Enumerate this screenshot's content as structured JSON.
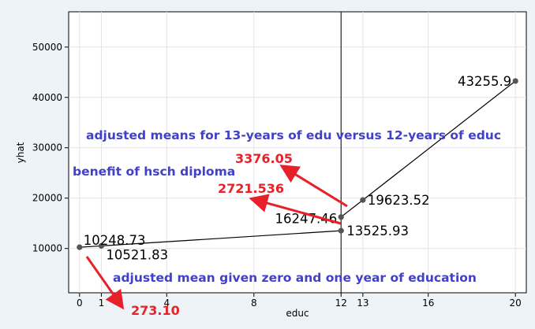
{
  "chart_data": {
    "type": "line",
    "xlabel": "educ",
    "ylabel": "yhat",
    "xlim": [
      -0.5,
      20.5
    ],
    "ylim": [
      1200,
      57000
    ],
    "x_ticks": [
      {
        "value": 0,
        "label": "0"
      },
      {
        "value": 1,
        "label": "1"
      },
      {
        "value": 4,
        "label": "4"
      },
      {
        "value": 8,
        "label": "8"
      },
      {
        "value": 12,
        "label": "12"
      },
      {
        "value": 13,
        "label": "13"
      },
      {
        "value": 16,
        "label": "16"
      },
      {
        "value": 20,
        "label": "20"
      }
    ],
    "y_ticks": [
      {
        "value": 10000,
        "label": "10000"
      },
      {
        "value": 20000,
        "label": "20000"
      },
      {
        "value": 30000,
        "label": "30000"
      },
      {
        "value": 40000,
        "label": "40000"
      },
      {
        "value": 50000,
        "label": "50000"
      }
    ],
    "grid": true,
    "series": [
      {
        "x": [
          0,
          1,
          12
        ],
        "y": [
          10248.73,
          10521.83,
          13525.93
        ]
      },
      {
        "x": [
          12,
          13,
          20
        ],
        "y": [
          16247.46,
          19623.52,
          43255.9
        ]
      }
    ],
    "vertical_line_x": 12,
    "point_labels": [
      {
        "text": "10248.73",
        "x": 0,
        "y": 10248.73
      },
      {
        "text": "10521.83",
        "x": 1,
        "y": 10521.83
      },
      {
        "text": "13525.93",
        "x": 12,
        "y": 13525.93
      },
      {
        "text": "16247.46",
        "x": 12,
        "y": 16247.46
      },
      {
        "text": "19623.52",
        "x": 13,
        "y": 19623.52
      },
      {
        "text": "43255.9",
        "x": 20,
        "y": 43255.9
      }
    ],
    "annotations": [
      {
        "text": "adjusted means for 13-years of edu versus 12-years of educ",
        "color": "#4040c8"
      },
      {
        "text": "benefit of hsch diploma",
        "color": "#4040c8"
      },
      {
        "text": "adjusted mean given zero and one year of education",
        "color": "#4040c8"
      },
      {
        "text": "3376.05",
        "color": "#e8202a"
      },
      {
        "text": "2721.536",
        "color": "#e8202a"
      },
      {
        "text": "273.10",
        "color": "#e8202a"
      }
    ],
    "colors": {
      "line": "#000000",
      "marker": "#555555",
      "grid": "#e3e3e3",
      "annotation": "#4040c8",
      "highlight": "#e8202a"
    }
  }
}
